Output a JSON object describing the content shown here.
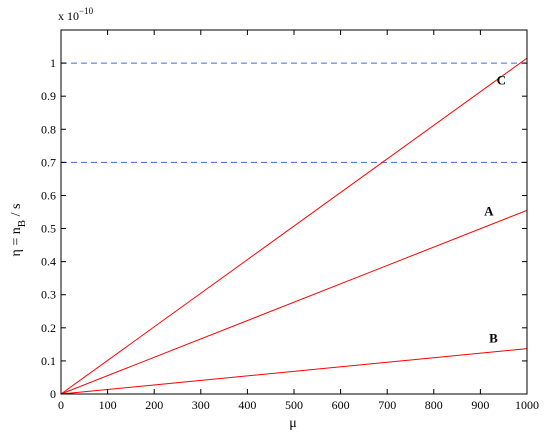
{
  "chart_data": {
    "type": "line",
    "xlabel": "μ",
    "ylabel": "η = n_B / s",
    "ylabel_parts": {
      "main": "η = n",
      "sub": "B",
      "tail": " / s"
    },
    "y_multiplier": {
      "prefix": "x 10",
      "exponent": "−10"
    },
    "xlim": [
      0,
      1000
    ],
    "ylim": [
      0,
      1.1
    ],
    "x_ticks": [
      0,
      100,
      200,
      300,
      400,
      500,
      600,
      700,
      800,
      900,
      1000
    ],
    "y_ticks": [
      0,
      0.1,
      0.2,
      0.3,
      0.4,
      0.5,
      0.6,
      0.7,
      0.8,
      0.9,
      1
    ],
    "grid": false,
    "series": [
      {
        "label": "C",
        "color": "#ff0000",
        "x": [
          0,
          1000
        ],
        "y": [
          0,
          1.015
        ],
        "label_at": [
          945,
          0.935
        ]
      },
      {
        "label": "A",
        "color": "#ff0000",
        "x": [
          0,
          1000
        ],
        "y": [
          0,
          0.555
        ],
        "label_at": [
          918,
          0.54
        ]
      },
      {
        "label": "B",
        "color": "#ff0000",
        "x": [
          0,
          1000
        ],
        "y": [
          0,
          0.137
        ],
        "label_at": [
          928,
          0.155
        ]
      }
    ],
    "reference_lines": [
      {
        "y": 1.0,
        "style": "dashed",
        "color": "#4169e1"
      },
      {
        "y": 0.7,
        "style": "dashed",
        "color": "#4169e1"
      }
    ]
  }
}
